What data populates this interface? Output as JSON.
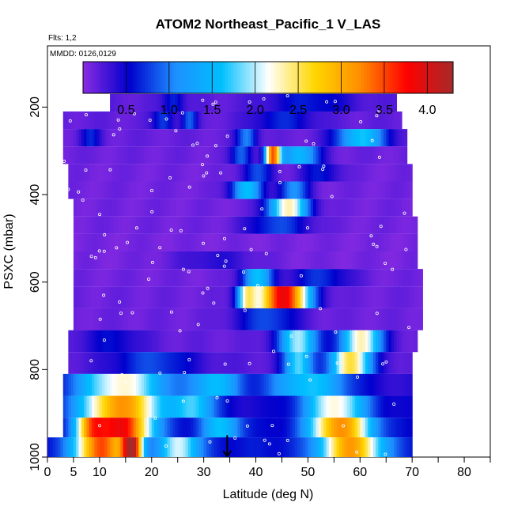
{
  "chart_data": {
    "type": "heatmap",
    "title": "ATOM2 Northeast_Pacific_1 V_LAS",
    "flights_label": "Flts: 1,2",
    "dates_label": "MMDD: 0126,0129",
    "xlabel": "Latitude (deg N)",
    "ylabel": "PSXC (mbar)",
    "xlim": [
      0,
      85
    ],
    "ylim": [
      1000,
      60
    ],
    "x_ticks": [
      "0",
      "5",
      "10",
      "20",
      "30",
      "40",
      "50",
      "60",
      "70",
      "80"
    ],
    "x_tick_values": [
      0,
      5,
      10,
      20,
      30,
      40,
      50,
      60,
      70,
      80
    ],
    "x_minor_ticks": [
      15,
      25,
      35,
      45,
      55,
      65,
      75,
      85
    ],
    "y_ticks": [
      "200",
      "400",
      "600",
      "800",
      "1000"
    ],
    "y_tick_values": [
      200,
      400,
      600,
      800,
      1000
    ],
    "colorbar": {
      "range": [
        0,
        4.3
      ],
      "tick_labels": [
        "0.5",
        "1.0",
        "1.5",
        "2.0",
        "2.5",
        "3.0",
        "3.5",
        "4.0"
      ],
      "tick_values": [
        0.5,
        1.0,
        1.5,
        2.0,
        2.5,
        3.0,
        3.5,
        4.0
      ],
      "colors": [
        "#8a2be2",
        "#0000cd",
        "#1e90ff",
        "#00bfff",
        "#ffffff",
        "#ffd700",
        "#ff8c00",
        "#ff0000",
        "#a52a2a"
      ]
    },
    "grid": false,
    "pressure_bands": [
      {
        "p_top": 170,
        "p_bot": 210,
        "lat_min": 12,
        "lat_max": 67,
        "base": 0.18,
        "hot": [
          {
            "lat": 24,
            "w": 2,
            "v": 0.5
          },
          {
            "lat": 50,
            "w": 8,
            "v": 0.45
          }
        ]
      },
      {
        "p_top": 210,
        "p_bot": 250,
        "lat_min": 3,
        "lat_max": 68,
        "base": 0.16,
        "hot": [
          {
            "lat": 22,
            "w": 2,
            "v": 0.6
          },
          {
            "lat": 27,
            "w": 1.5,
            "v": 0.7
          },
          {
            "lat": 45,
            "w": 6,
            "v": 0.5
          }
        ]
      },
      {
        "p_top": 250,
        "p_bot": 290,
        "lat_min": 3,
        "lat_max": 69,
        "base": 0.14,
        "hot": [
          {
            "lat": 8,
            "w": 2,
            "v": 0.5
          },
          {
            "lat": 38,
            "w": 2,
            "v": 0.9
          },
          {
            "lat": 60,
            "w": 5,
            "v": 1.5
          }
        ]
      },
      {
        "p_top": 290,
        "p_bot": 330,
        "lat_min": 3,
        "lat_max": 69,
        "base": 0.12,
        "hot": [
          {
            "lat": 37,
            "w": 2,
            "v": 0.8
          },
          {
            "lat": 43,
            "w": 1.5,
            "v": 3.0
          },
          {
            "lat": 48,
            "w": 4,
            "v": 1.4
          }
        ]
      },
      {
        "p_top": 330,
        "p_bot": 370,
        "lat_min": 4,
        "lat_max": 70,
        "base": 0.1,
        "hot": [
          {
            "lat": 40,
            "w": 3,
            "v": 0.7
          },
          {
            "lat": 52,
            "w": 4,
            "v": 0.5
          }
        ]
      },
      {
        "p_top": 370,
        "p_bot": 410,
        "lat_min": 4,
        "lat_max": 70,
        "base": 0.1,
        "hot": [
          {
            "lat": 38,
            "w": 3,
            "v": 1.5
          },
          {
            "lat": 47,
            "w": 3,
            "v": 1.0
          }
        ]
      },
      {
        "p_top": 410,
        "p_bot": 450,
        "lat_min": 5,
        "lat_max": 70,
        "base": 0.1,
        "hot": [
          {
            "lat": 46,
            "w": 4,
            "v": 2.2
          }
        ]
      },
      {
        "p_top": 450,
        "p_bot": 490,
        "lat_min": 5,
        "lat_max": 71,
        "base": 0.1,
        "hot": [
          {
            "lat": 44,
            "w": 6,
            "v": 0.7
          }
        ]
      },
      {
        "p_top": 490,
        "p_bot": 530,
        "lat_min": 5,
        "lat_max": 71,
        "base": 0.08,
        "hot": []
      },
      {
        "p_top": 530,
        "p_bot": 570,
        "lat_min": 5,
        "lat_max": 71,
        "base": 0.08,
        "hot": [
          {
            "lat": 32,
            "w": 8,
            "v": 0.3
          }
        ]
      },
      {
        "p_top": 570,
        "p_bot": 610,
        "lat_min": 5,
        "lat_max": 72,
        "base": 0.1,
        "hot": [
          {
            "lat": 40,
            "w": 3,
            "v": 1.5
          },
          {
            "lat": 52,
            "w": 6,
            "v": 0.6
          }
        ]
      },
      {
        "p_top": 610,
        "p_bot": 660,
        "lat_min": 5,
        "lat_max": 72,
        "base": 0.12,
        "hot": [
          {
            "lat": 45,
            "w": 5,
            "v": 3.8
          },
          {
            "lat": 38,
            "w": 2,
            "v": 1.8
          }
        ]
      },
      {
        "p_top": 660,
        "p_bot": 710,
        "lat_min": 5,
        "lat_max": 72,
        "base": 0.12,
        "hot": [
          {
            "lat": 42,
            "w": 6,
            "v": 0.7
          }
        ]
      },
      {
        "p_top": 710,
        "p_bot": 760,
        "lat_min": 4,
        "lat_max": 71,
        "base": 0.15,
        "hot": [
          {
            "lat": 48,
            "w": 4,
            "v": 1.8
          },
          {
            "lat": 60,
            "w": 4,
            "v": 2.2
          },
          {
            "lat": 12,
            "w": 6,
            "v": 0.4
          }
        ]
      },
      {
        "p_top": 760,
        "p_bot": 810,
        "lat_min": 4,
        "lat_max": 70,
        "base": 0.2,
        "hot": [
          {
            "lat": 20,
            "w": 8,
            "v": 0.6
          },
          {
            "lat": 58,
            "w": 4,
            "v": 2.4
          },
          {
            "lat": 48,
            "w": 3,
            "v": 1.6
          }
        ]
      },
      {
        "p_top": 810,
        "p_bot": 860,
        "lat_min": 3,
        "lat_max": 70,
        "base": 0.35,
        "hot": [
          {
            "lat": 14,
            "w": 9,
            "v": 1.9
          },
          {
            "lat": 32,
            "w": 5,
            "v": 1.2
          },
          {
            "lat": 50,
            "w": 8,
            "v": 1.3
          }
        ]
      },
      {
        "p_top": 860,
        "p_bot": 910,
        "lat_min": 3,
        "lat_max": 70,
        "base": 0.45,
        "hot": [
          {
            "lat": 14,
            "w": 8,
            "v": 2.7
          },
          {
            "lat": 28,
            "w": 4,
            "v": 1.2
          },
          {
            "lat": 55,
            "w": 6,
            "v": 1.8
          }
        ]
      },
      {
        "p_top": 910,
        "p_bot": 955,
        "lat_min": 3,
        "lat_max": 70,
        "base": 0.5,
        "hot": [
          {
            "lat": 14,
            "w": 6,
            "v": 3.3
          },
          {
            "lat": 8,
            "w": 3,
            "v": 1.8
          },
          {
            "lat": 56,
            "w": 6,
            "v": 2.7
          },
          {
            "lat": 33,
            "w": 4,
            "v": 1.1
          }
        ]
      },
      {
        "p_top": 955,
        "p_bot": 1000,
        "lat_min": 0,
        "lat_max": 70,
        "base": 0.6,
        "hot": [
          {
            "lat": 10,
            "w": 5,
            "v": 2.9
          },
          {
            "lat": 16,
            "w": 2,
            "v": 3.2
          },
          {
            "lat": 58,
            "w": 6,
            "v": 2.5
          },
          {
            "lat": 25,
            "w": 4,
            "v": 1.5
          }
        ]
      }
    ],
    "marker": {
      "lat": 34.5,
      "p_from": 950,
      "p_to": 1000,
      "symbol": "down-arrow"
    }
  }
}
